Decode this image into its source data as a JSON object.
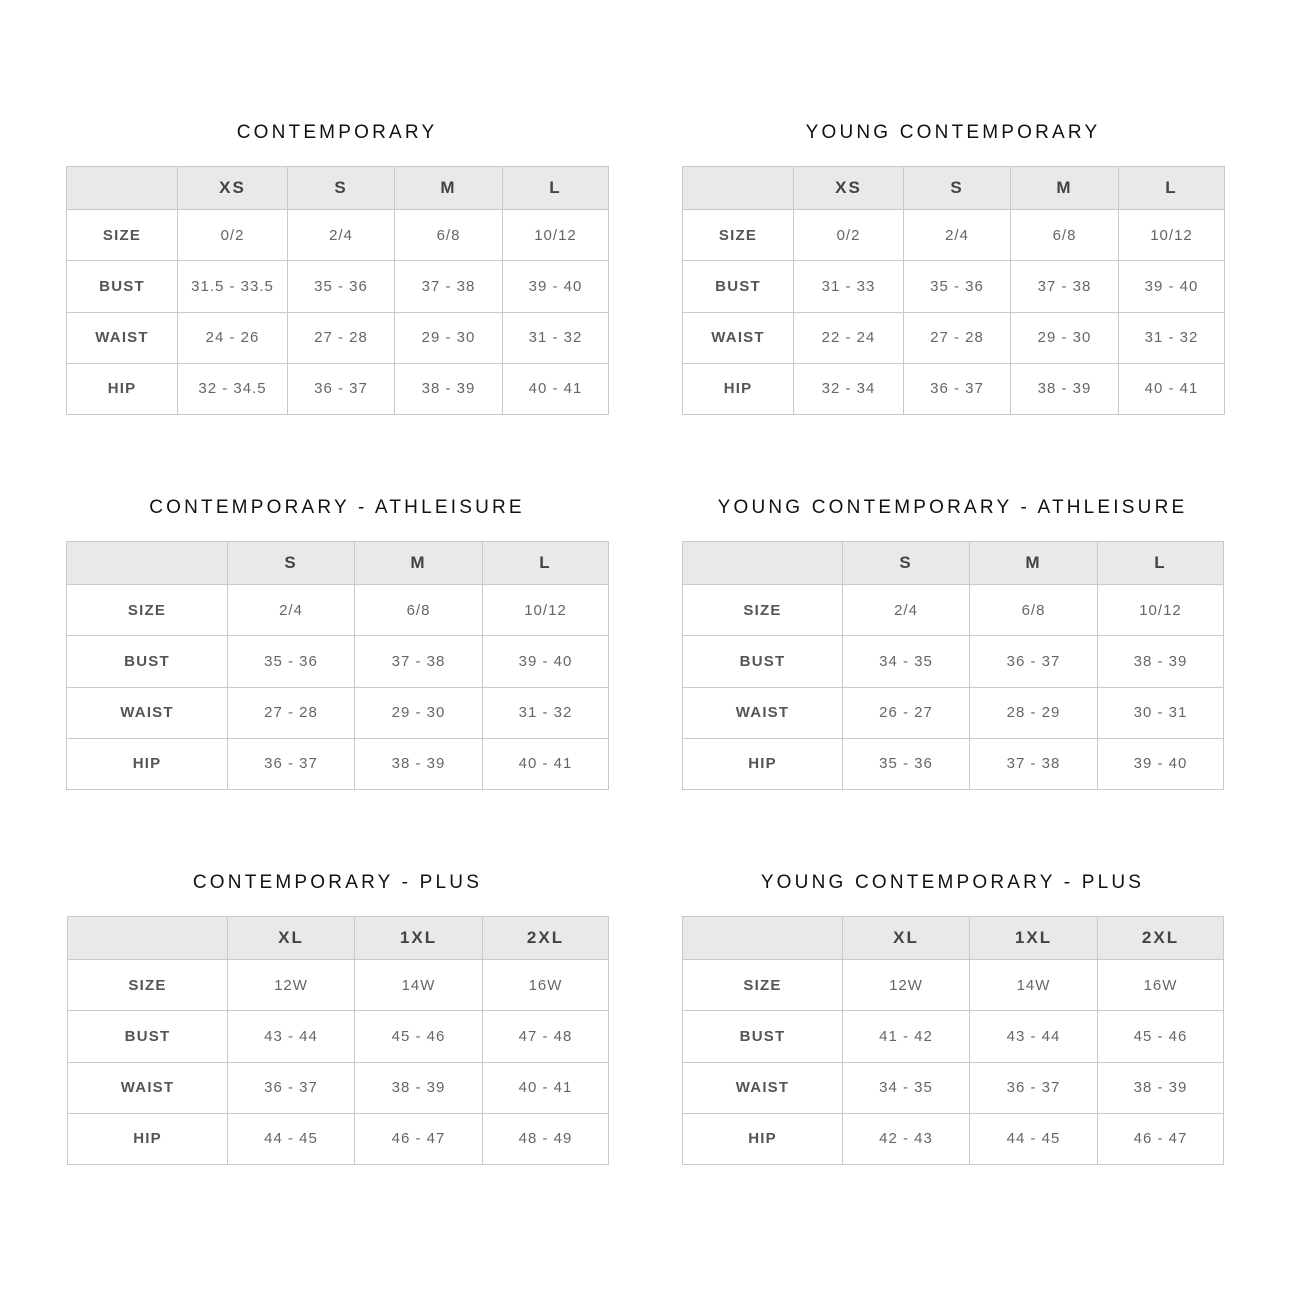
{
  "charts": [
    {
      "title": "CONTEMPORARY",
      "columns": [
        "",
        "XS",
        "S",
        "M",
        "L"
      ],
      "rows": [
        {
          "label": "SIZE",
          "values": [
            "0/2",
            "2/4",
            "6/8",
            "10/12"
          ]
        },
        {
          "label": "BUST",
          "values": [
            "31.5 - 33.5",
            "35 - 36",
            "37 - 38",
            "39 - 40"
          ]
        },
        {
          "label": "WAIST",
          "values": [
            "24 - 26",
            "27 - 28",
            "29 - 30",
            "31 - 32"
          ]
        },
        {
          "label": "HIP",
          "values": [
            "32 - 34.5",
            "36 - 37",
            "38 - 39",
            "40 - 41"
          ]
        }
      ]
    },
    {
      "title": "YOUNG CONTEMPORARY",
      "columns": [
        "",
        "XS",
        "S",
        "M",
        "L"
      ],
      "rows": [
        {
          "label": "SIZE",
          "values": [
            "0/2",
            "2/4",
            "6/8",
            "10/12"
          ]
        },
        {
          "label": "BUST",
          "values": [
            "31 - 33",
            "35 - 36",
            "37 - 38",
            "39 - 40"
          ]
        },
        {
          "label": "WAIST",
          "values": [
            "22 - 24",
            "27 - 28",
            "29 - 30",
            "31 - 32"
          ]
        },
        {
          "label": "HIP",
          "values": [
            "32 - 34",
            "36 - 37",
            "38 - 39",
            "40 - 41"
          ]
        }
      ]
    },
    {
      "title": "CONTEMPORARY - ATHLEISURE",
      "columns": [
        "",
        "S",
        "M",
        "L"
      ],
      "rows": [
        {
          "label": "SIZE",
          "values": [
            "2/4",
            "6/8",
            "10/12"
          ]
        },
        {
          "label": "BUST",
          "values": [
            "35 - 36",
            "37 - 38",
            "39 - 40"
          ]
        },
        {
          "label": "WAIST",
          "values": [
            "27 - 28",
            "29 - 30",
            "31 - 32"
          ]
        },
        {
          "label": "HIP",
          "values": [
            "36 - 37",
            "38 - 39",
            "40 - 41"
          ]
        }
      ]
    },
    {
      "title": "YOUNG CONTEMPORARY - ATHLEISURE",
      "columns": [
        "",
        "S",
        "M",
        "L"
      ],
      "rows": [
        {
          "label": "SIZE",
          "values": [
            "2/4",
            "6/8",
            "10/12"
          ]
        },
        {
          "label": "BUST",
          "values": [
            "34 - 35",
            "36 - 37",
            "38 - 39"
          ]
        },
        {
          "label": "WAIST",
          "values": [
            "26 - 27",
            "28 - 29",
            "30 - 31"
          ]
        },
        {
          "label": "HIP",
          "values": [
            "35 - 36",
            "37 - 38",
            "39 - 40"
          ]
        }
      ]
    },
    {
      "title": "CONTEMPORARY - PLUS",
      "columns": [
        "",
        "XL",
        "1XL",
        "2XL"
      ],
      "rows": [
        {
          "label": "SIZE",
          "values": [
            "12W",
            "14W",
            "16W"
          ]
        },
        {
          "label": "BUST",
          "values": [
            "43 - 44",
            "45 - 46",
            "47 - 48"
          ]
        },
        {
          "label": "WAIST",
          "values": [
            "36 - 37",
            "38 - 39",
            "40 - 41"
          ]
        },
        {
          "label": "HIP",
          "values": [
            "44 - 45",
            "46 - 47",
            "48 - 49"
          ]
        }
      ]
    },
    {
      "title": "YOUNG CONTEMPORARY - PLUS",
      "columns": [
        "",
        "XL",
        "1XL",
        "2XL"
      ],
      "rows": [
        {
          "label": "SIZE",
          "values": [
            "12W",
            "14W",
            "16W"
          ]
        },
        {
          "label": "BUST",
          "values": [
            "41 - 42",
            "43 - 44",
            "45 - 46"
          ]
        },
        {
          "label": "WAIST",
          "values": [
            "34 - 35",
            "36 - 37",
            "38 - 39"
          ]
        },
        {
          "label": "HIP",
          "values": [
            "42 - 43",
            "44 - 45",
            "46 - 47"
          ]
        }
      ]
    }
  ]
}
